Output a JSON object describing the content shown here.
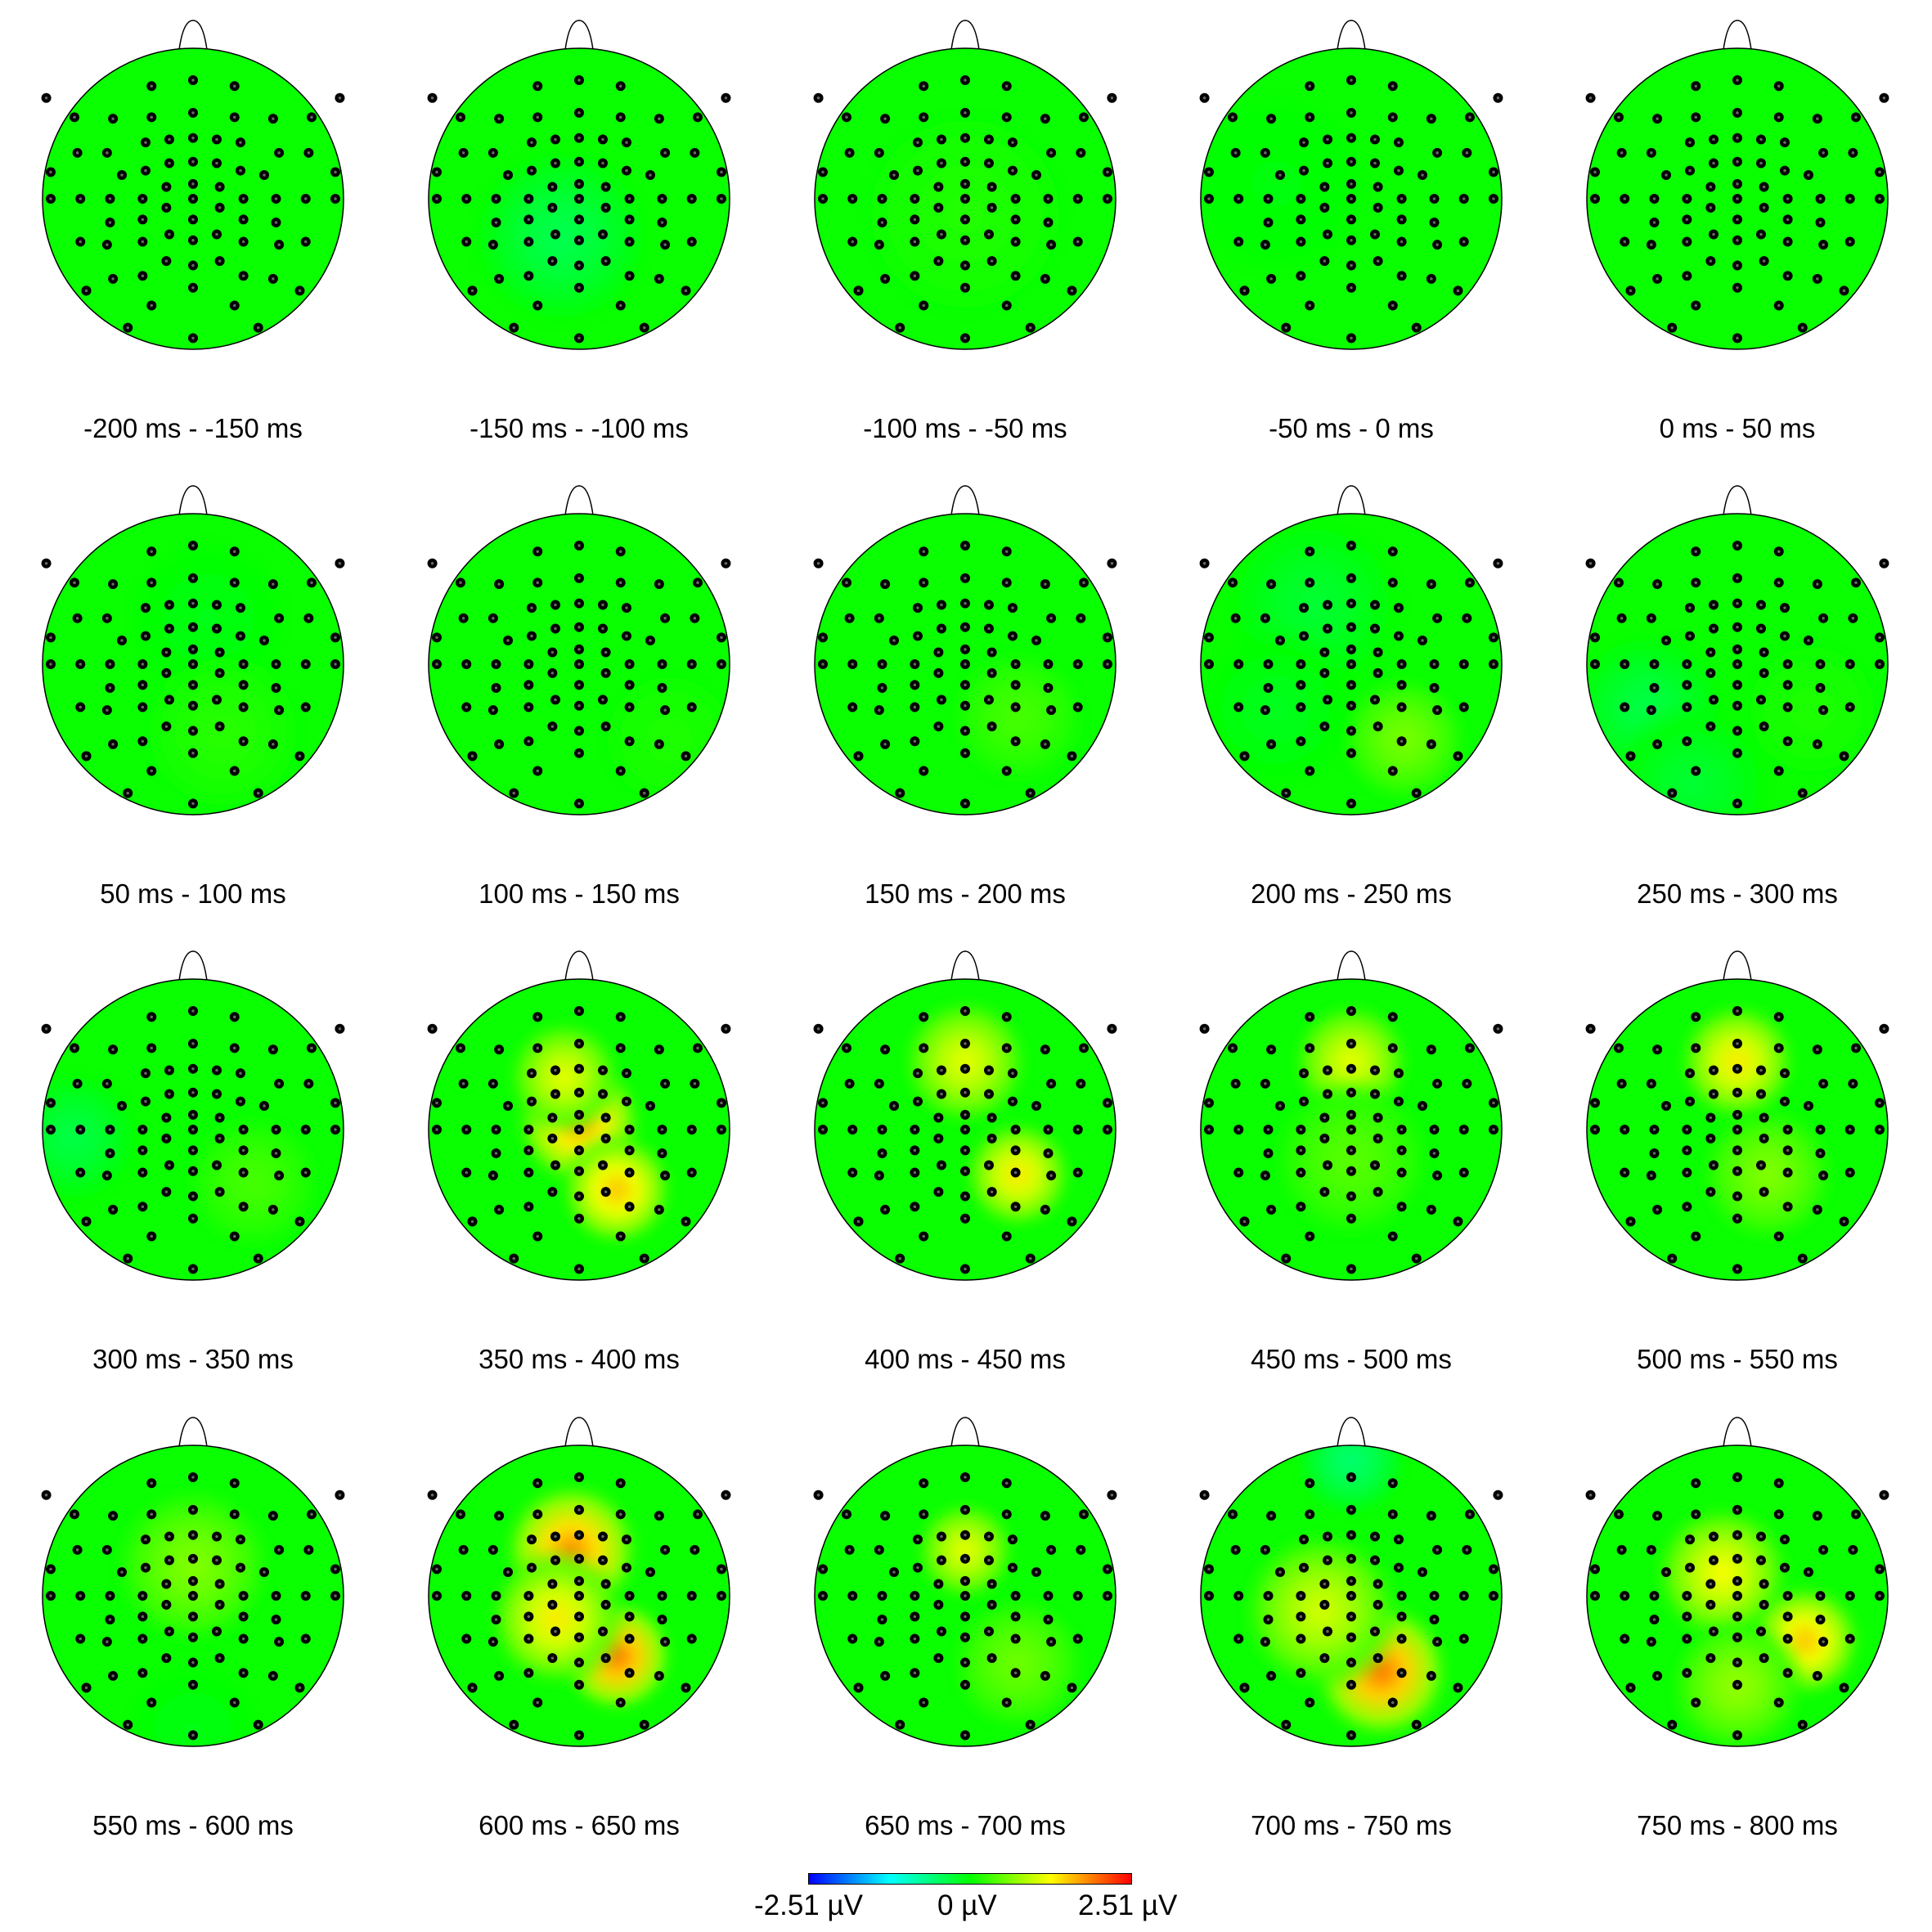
{
  "chart_data": {
    "type": "heatmap",
    "description_kind": "scalp topography maps (EEG), 4 rows x 5 columns",
    "panels": [
      {
        "label": "-200 ms - -150 ms",
        "blobs": []
      },
      {
        "label": "-150 ms - -100 ms",
        "blobs": [
          {
            "x": -0.12,
            "y": 0.25,
            "v": -0.45,
            "s": 0.4
          }
        ]
      },
      {
        "label": "-100 ms - -50 ms",
        "blobs": [
          {
            "x": 0.0,
            "y": 0.1,
            "v": 0.12,
            "s": 0.45
          }
        ]
      },
      {
        "label": "-50 ms - 0 ms",
        "blobs": [
          {
            "x": -0.5,
            "y": -0.1,
            "v": -0.1,
            "s": 0.4
          }
        ]
      },
      {
        "label": "0 ms - 50 ms",
        "blobs": []
      },
      {
        "label": "50 ms - 100 ms",
        "blobs": [
          {
            "x": 0.1,
            "y": -0.3,
            "v": -0.15,
            "s": 0.35
          },
          {
            "x": 0.2,
            "y": 0.45,
            "v": 0.15,
            "s": 0.35
          }
        ]
      },
      {
        "label": "100 ms - 150 ms",
        "blobs": [
          {
            "x": 0.6,
            "y": 0.5,
            "v": 0.1,
            "s": 0.3
          }
        ]
      },
      {
        "label": "150 ms - 200 ms",
        "blobs": [
          {
            "x": 0.35,
            "y": 0.35,
            "v": 0.3,
            "s": 0.3
          }
        ]
      },
      {
        "label": "200 ms - 250 ms",
        "blobs": [
          {
            "x": -0.25,
            "y": -0.4,
            "v": -0.3,
            "s": 0.4
          },
          {
            "x": 0.35,
            "y": 0.5,
            "v": 0.55,
            "s": 0.28
          },
          {
            "x": -0.5,
            "y": 0.3,
            "v": -0.2,
            "s": 0.35
          }
        ]
      },
      {
        "label": "250 ms - 300 ms",
        "blobs": [
          {
            "x": -0.6,
            "y": 0.3,
            "v": -0.4,
            "s": 0.35
          },
          {
            "x": -0.3,
            "y": 0.8,
            "v": -0.3,
            "s": 0.35
          },
          {
            "x": 0.5,
            "y": 0.3,
            "v": 0.1,
            "s": 0.3
          }
        ]
      },
      {
        "label": "300 ms - 350 ms",
        "blobs": [
          {
            "x": -0.8,
            "y": 0.05,
            "v": -0.4,
            "s": 0.3
          },
          {
            "x": 0.4,
            "y": 0.35,
            "v": 0.3,
            "s": 0.3
          }
        ]
      },
      {
        "label": "350 ms - 400 ms",
        "blobs": [
          {
            "x": 0.0,
            "y": -0.05,
            "v": 1.7,
            "s": 0.28
          },
          {
            "x": 0.25,
            "y": 0.4,
            "v": 1.5,
            "s": 0.25
          },
          {
            "x": -0.1,
            "y": -0.35,
            "v": 1.1,
            "s": 0.25
          }
        ]
      },
      {
        "label": "400 ms - 450 ms",
        "blobs": [
          {
            "x": 0.0,
            "y": -0.45,
            "v": 1.1,
            "s": 0.28
          },
          {
            "x": 0.35,
            "y": 0.3,
            "v": 1.3,
            "s": 0.24
          }
        ]
      },
      {
        "label": "450 ms - 500 ms",
        "blobs": [
          {
            "x": 0.0,
            "y": -0.45,
            "v": 1.1,
            "s": 0.26
          },
          {
            "x": 0.0,
            "y": 0.2,
            "v": 0.4,
            "s": 0.35
          }
        ]
      },
      {
        "label": "500 ms - 550 ms",
        "blobs": [
          {
            "x": 0.0,
            "y": -0.45,
            "v": 1.3,
            "s": 0.26
          },
          {
            "x": 0.2,
            "y": 0.3,
            "v": 0.6,
            "s": 0.3
          }
        ]
      },
      {
        "label": "550 ms - 600 ms",
        "blobs": [
          {
            "x": 0.0,
            "y": -0.2,
            "v": 0.6,
            "s": 0.35
          },
          {
            "x": 0.0,
            "y": 0.9,
            "v": -0.15,
            "s": 0.3
          }
        ]
      },
      {
        "label": "600 ms - 650 ms",
        "blobs": [
          {
            "x": -0.05,
            "y": -0.3,
            "v": 1.8,
            "s": 0.3
          },
          {
            "x": 0.25,
            "y": 0.4,
            "v": 1.9,
            "s": 0.25
          },
          {
            "x": -0.15,
            "y": 0.15,
            "v": 1.3,
            "s": 0.3
          }
        ]
      },
      {
        "label": "650 ms - 700 ms",
        "blobs": [
          {
            "x": 0.0,
            "y": -0.3,
            "v": 1.1,
            "s": 0.22
          },
          {
            "x": 0.35,
            "y": 0.45,
            "v": 0.5,
            "s": 0.3
          }
        ]
      },
      {
        "label": "700 ms - 750 ms",
        "blobs": [
          {
            "x": 0.0,
            "y": -0.9,
            "v": -0.6,
            "s": 0.25
          },
          {
            "x": 0.2,
            "y": 0.5,
            "v": 1.9,
            "s": 0.3
          },
          {
            "x": -0.2,
            "y": 0.1,
            "v": 1.0,
            "s": 0.35
          }
        ]
      },
      {
        "label": "750 ms - 800 ms",
        "blobs": [
          {
            "x": -0.1,
            "y": -0.15,
            "v": 1.2,
            "s": 0.3
          },
          {
            "x": 0.45,
            "y": 0.3,
            "v": 1.5,
            "s": 0.25
          },
          {
            "x": 0.0,
            "y": 0.6,
            "v": 0.7,
            "s": 0.3
          }
        ]
      }
    ],
    "colorbar": {
      "min": -2.51,
      "max": 2.51,
      "min_label": "-2.51 µV",
      "mid_label": "0 µV",
      "max_label": "2.51 µV",
      "colormap": [
        "#0000ff",
        "#00ffff",
        "#00ff00",
        "#ffff00",
        "#ff0000"
      ]
    },
    "electrodes": [
      [
        -0.28,
        -0.76
      ],
      [
        0,
        -0.8
      ],
      [
        0.28,
        -0.76
      ],
      [
        -0.8,
        -0.55
      ],
      [
        -0.54,
        -0.54
      ],
      [
        -0.28,
        -0.55
      ],
      [
        0,
        -0.58
      ],
      [
        0.28,
        -0.55
      ],
      [
        0.54,
        -0.54
      ],
      [
        0.8,
        -0.55
      ],
      [
        -0.32,
        -0.38
      ],
      [
        -0.16,
        -0.4
      ],
      [
        0,
        -0.41
      ],
      [
        0.16,
        -0.4
      ],
      [
        0.32,
        -0.38
      ],
      [
        -0.78,
        -0.31
      ],
      [
        -0.58,
        -0.31
      ],
      [
        -0.32,
        -0.19
      ],
      [
        -0.16,
        -0.24
      ],
      [
        0,
        -0.25
      ],
      [
        0.16,
        -0.24
      ],
      [
        0.32,
        -0.19
      ],
      [
        0.58,
        -0.31
      ],
      [
        0.78,
        -0.31
      ],
      [
        -0.96,
        -0.18
      ],
      [
        -0.48,
        -0.16
      ],
      [
        0.48,
        -0.16
      ],
      [
        0.96,
        -0.18
      ],
      [
        -0.18,
        -0.08
      ],
      [
        0,
        -0.1
      ],
      [
        0.18,
        -0.08
      ],
      [
        -0.96,
        0
      ],
      [
        -0.76,
        0
      ],
      [
        -0.56,
        0
      ],
      [
        -0.34,
        0
      ],
      [
        -0.18,
        0.06
      ],
      [
        0,
        0
      ],
      [
        0.18,
        0.06
      ],
      [
        0.34,
        0
      ],
      [
        0.56,
        0
      ],
      [
        0.76,
        0
      ],
      [
        0.96,
        0
      ],
      [
        -0.56,
        0.16
      ],
      [
        -0.34,
        0.14
      ],
      [
        0,
        0.14
      ],
      [
        0.34,
        0.14
      ],
      [
        0.56,
        0.16
      ],
      [
        -0.76,
        0.29
      ],
      [
        -0.58,
        0.31
      ],
      [
        -0.34,
        0.29
      ],
      [
        -0.16,
        0.24
      ],
      [
        0,
        0.28
      ],
      [
        0.16,
        0.24
      ],
      [
        0.34,
        0.29
      ],
      [
        0.58,
        0.31
      ],
      [
        0.76,
        0.29
      ],
      [
        -0.18,
        0.42
      ],
      [
        0.18,
        0.42
      ],
      [
        0,
        0.45
      ],
      [
        -0.72,
        0.62
      ],
      [
        -0.54,
        0.54
      ],
      [
        -0.34,
        0.52
      ],
      [
        0,
        0.6
      ],
      [
        0.34,
        0.52
      ],
      [
        0.54,
        0.54
      ],
      [
        0.72,
        0.62
      ],
      [
        -0.72,
        0.62
      ],
      [
        -0.28,
        0.72
      ],
      [
        0.28,
        0.72
      ],
      [
        -0.44,
        0.87
      ],
      [
        0,
        0.94
      ],
      [
        0.44,
        0.87
      ],
      [
        -0.99,
        -0.68
      ],
      [
        0.99,
        -0.68
      ]
    ]
  }
}
